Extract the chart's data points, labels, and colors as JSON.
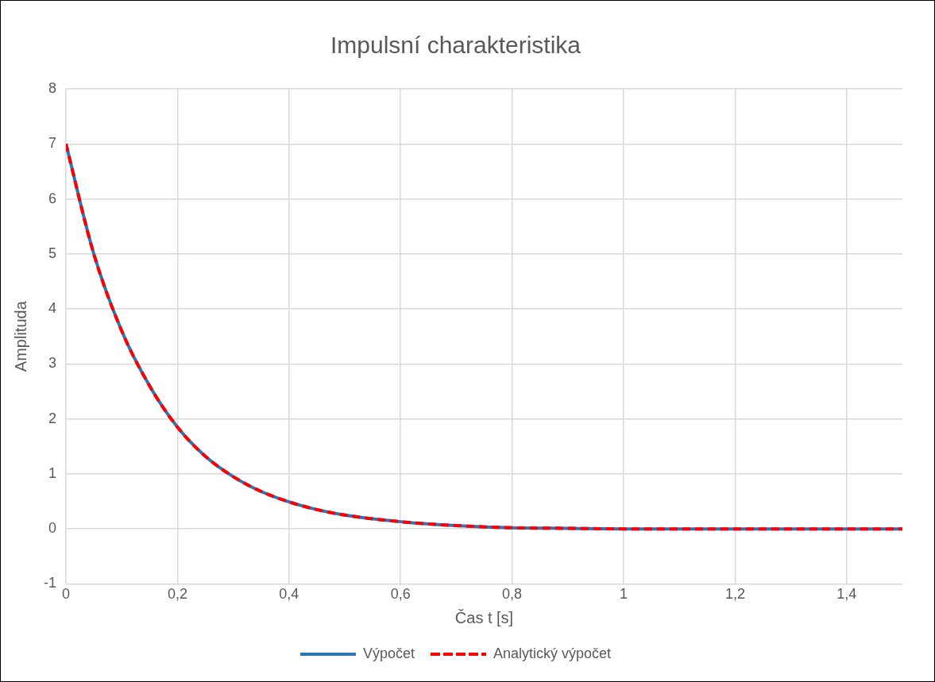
{
  "chart_data": {
    "type": "line",
    "title": "Impulsní charakteristika",
    "xlabel": "Čas t [s]",
    "ylabel": "Amplituda",
    "x": [
      0,
      0.05,
      0.1,
      0.15,
      0.2,
      0.25,
      0.3,
      0.35,
      0.4,
      0.45,
      0.5,
      0.6,
      0.7,
      0.8,
      0.9,
      1,
      1.2,
      1.5
    ],
    "series": [
      {
        "name": "Výpočet",
        "color": "#2e75b6",
        "line_style": "solid",
        "values": [
          7,
          5,
          3.6,
          2.6,
          1.85,
          1.32,
          0.95,
          0.68,
          0.49,
          0.35,
          0.25,
          0.13,
          0.06,
          0.02,
          0.01,
          0,
          0,
          0
        ]
      },
      {
        "name": "Analytický výpočet",
        "color": "#ff0000",
        "line_style": "dashed",
        "values": [
          7,
          5,
          3.6,
          2.6,
          1.85,
          1.32,
          0.95,
          0.68,
          0.49,
          0.35,
          0.25,
          0.13,
          0.06,
          0.02,
          0.01,
          0,
          0,
          0
        ]
      }
    ],
    "xlim": [
      0,
      1.5
    ],
    "xticks": [
      0,
      {
        "value": 0.2,
        "label": "0,2"
      },
      {
        "value": 0.4,
        "label": "0,4"
      },
      {
        "value": 0.6,
        "label": "0,6"
      },
      {
        "value": 0.8,
        "label": "0,8"
      },
      1,
      {
        "value": 1.2,
        "label": "1,2"
      },
      {
        "value": 1.4,
        "label": "1,4"
      }
    ],
    "ylim": [
      -1,
      8
    ],
    "yticks": [
      -1,
      0,
      1,
      2,
      3,
      4,
      5,
      6,
      7,
      8
    ],
    "grid": true,
    "legend": "bottom",
    "marker": "none"
  }
}
